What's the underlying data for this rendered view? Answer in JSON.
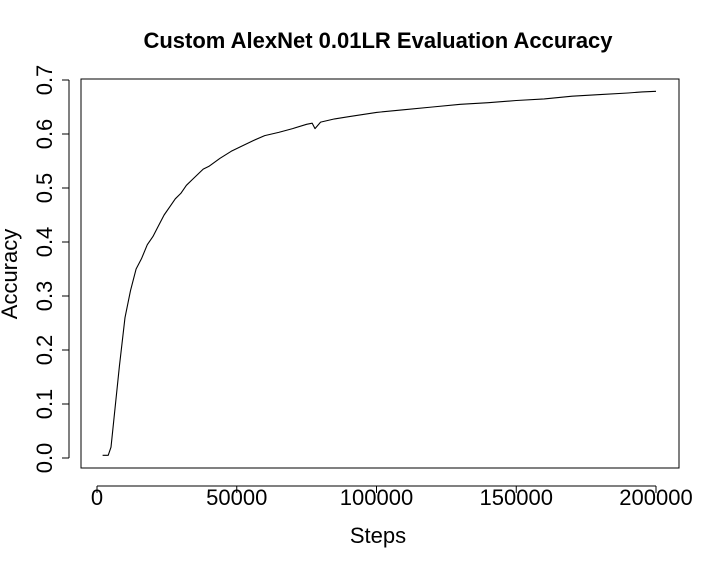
{
  "chart_data": {
    "type": "line",
    "title": "Custom AlexNet 0.01LR Evaluation Accuracy",
    "xlabel": "Steps",
    "ylabel": "Accuracy",
    "xlim": [
      0,
      200000
    ],
    "ylim": [
      0,
      0.7
    ],
    "grid": false,
    "legend": "none",
    "x_ticks": [
      0,
      50000,
      100000,
      150000,
      200000
    ],
    "x_tick_labels": [
      "0",
      "50000",
      "100000",
      "150000",
      "200000"
    ],
    "y_ticks": [
      0,
      0.1,
      0.2,
      0.3,
      0.4,
      0.5,
      0.6,
      0.7
    ],
    "y_tick_labels": [
      "0.0",
      "0.1",
      "0.2",
      "0.3",
      "0.4",
      "0.5",
      "0.6",
      "0.7"
    ],
    "series": [
      {
        "color": "#000000",
        "x": [
          2000,
          4000,
          5000,
          6000,
          8000,
          10000,
          12000,
          14000,
          16000,
          18000,
          20000,
          22000,
          24000,
          26000,
          28000,
          30000,
          32000,
          34000,
          36000,
          38000,
          40000,
          44000,
          48000,
          52000,
          56000,
          60000,
          65000,
          70000,
          75000,
          77000,
          78000,
          80000,
          85000,
          90000,
          95000,
          100000,
          110000,
          120000,
          130000,
          140000,
          150000,
          160000,
          170000,
          180000,
          190000,
          195000,
          200000
        ],
        "y": [
          0.005,
          0.005,
          0.02,
          0.07,
          0.17,
          0.26,
          0.31,
          0.35,
          0.37,
          0.395,
          0.41,
          0.43,
          0.45,
          0.465,
          0.48,
          0.49,
          0.505,
          0.515,
          0.525,
          0.535,
          0.54,
          0.555,
          0.568,
          0.578,
          0.588,
          0.597,
          0.603,
          0.61,
          0.618,
          0.62,
          0.61,
          0.622,
          0.628,
          0.632,
          0.636,
          0.64,
          0.645,
          0.65,
          0.655,
          0.658,
          0.662,
          0.665,
          0.67,
          0.673,
          0.676,
          0.678,
          0.679
        ]
      }
    ]
  }
}
